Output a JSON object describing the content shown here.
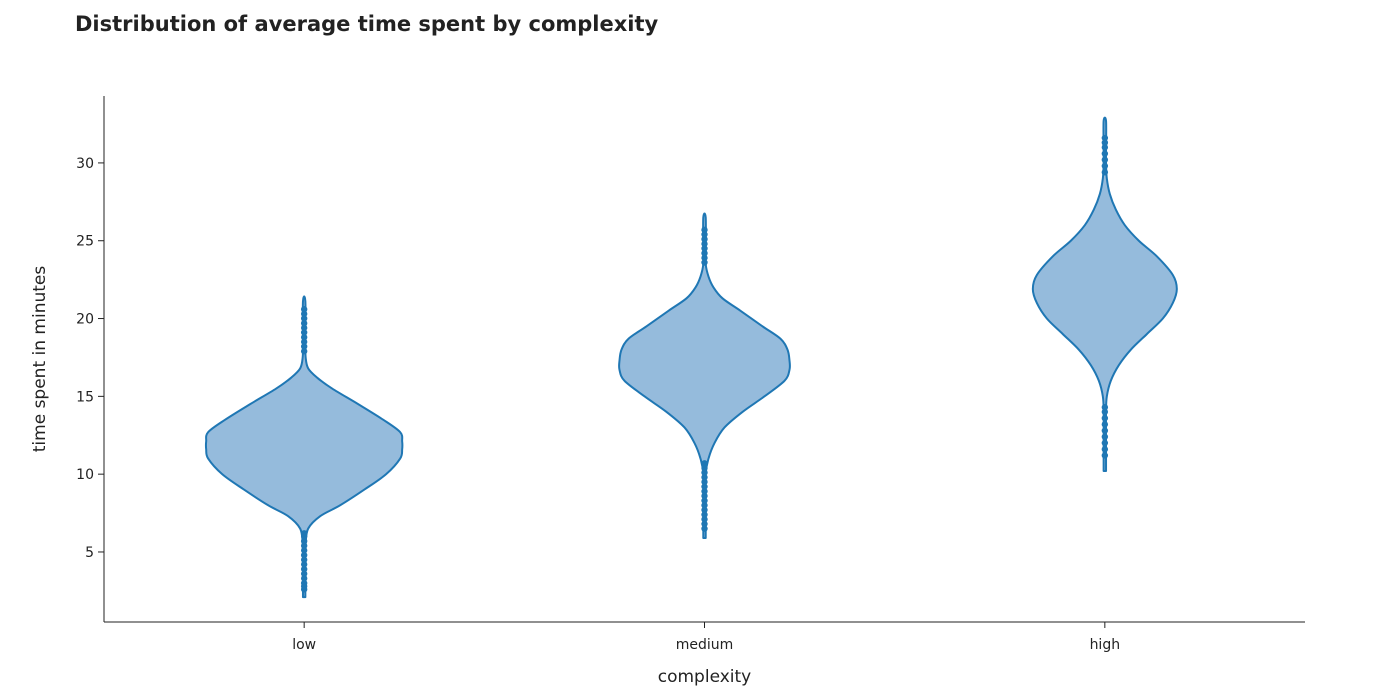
{
  "chart_data": {
    "type": "violin",
    "title": "Distribution of average time spent by complexity",
    "xlabel": "complexity",
    "ylabel": "time spent in minutes",
    "categories": [
      "low",
      "medium",
      "high"
    ],
    "yticks": [
      5,
      10,
      15,
      20,
      25,
      30
    ],
    "ylim": [
      0.5,
      34.3
    ],
    "grid": false,
    "color": "#1f77b4",
    "fill_color": "#95bbdc",
    "violins": [
      {
        "category": "low",
        "range": [
          2.1,
          21.1
        ],
        "outliers": [
          2.6,
          2.8,
          3.0,
          3.3,
          3.6,
          3.9,
          4.2,
          4.5,
          4.8,
          5.1,
          5.4,
          5.7,
          6.0,
          6.2,
          17.9,
          18.2,
          18.5,
          18.8,
          19.1,
          19.4,
          19.7,
          20.0,
          20.3,
          20.6
        ],
        "profile": [
          [
            2.1,
            0.0
          ],
          [
            4.0,
            0.0
          ],
          [
            5.5,
            1.5
          ],
          [
            6.5,
            4
          ],
          [
            7.3,
            16
          ],
          [
            8.0,
            36
          ],
          [
            9.0,
            60
          ],
          [
            10.0,
            82
          ],
          [
            11.0,
            96
          ],
          [
            11.6,
            98
          ],
          [
            12.1,
            98
          ],
          [
            12.7,
            96
          ],
          [
            13.5,
            79
          ],
          [
            14.5,
            54
          ],
          [
            15.5,
            28
          ],
          [
            16.2,
            13
          ],
          [
            16.8,
            4
          ],
          [
            17.5,
            1.5
          ],
          [
            18.5,
            0.0
          ],
          [
            21.1,
            0.0
          ]
        ]
      },
      {
        "category": "medium",
        "range": [
          5.9,
          26.5
        ],
        "outliers": [
          6.5,
          6.8,
          7.1,
          7.4,
          7.7,
          8.0,
          8.3,
          8.6,
          8.9,
          9.2,
          9.5,
          9.8,
          10.1,
          10.4,
          10.7,
          23.6,
          23.9,
          24.2,
          24.5,
          24.8,
          25.1,
          25.4,
          25.7
        ],
        "profile": [
          [
            5.9,
            0.0
          ],
          [
            8.0,
            0.0
          ],
          [
            10.0,
            1
          ],
          [
            11.0,
            4
          ],
          [
            12.0,
            10
          ],
          [
            13.0,
            20
          ],
          [
            14.0,
            38
          ],
          [
            15.0,
            60
          ],
          [
            16.0,
            80
          ],
          [
            16.7,
            85
          ],
          [
            17.3,
            85
          ],
          [
            18.0,
            83
          ],
          [
            18.7,
            76
          ],
          [
            19.5,
            58
          ],
          [
            20.5,
            36
          ],
          [
            21.3,
            18
          ],
          [
            22.0,
            9
          ],
          [
            22.7,
            4
          ],
          [
            23.5,
            1
          ],
          [
            24.5,
            0.0
          ],
          [
            26.5,
            0.0
          ]
        ]
      },
      {
        "category": "high",
        "range": [
          10.2,
          32.7
        ],
        "outliers": [
          11.2,
          11.6,
          12.0,
          12.4,
          12.8,
          13.2,
          13.6,
          14.0,
          14.3,
          29.4,
          29.8,
          30.2,
          30.6,
          31.0,
          31.3,
          31.6
        ],
        "profile": [
          [
            10.2,
            0.0
          ],
          [
            11.5,
            0.0
          ],
          [
            14.0,
            0.5
          ],
          [
            15.0,
            2
          ],
          [
            16.0,
            6
          ],
          [
            17.0,
            14
          ],
          [
            18.0,
            26
          ],
          [
            19.0,
            42
          ],
          [
            20.0,
            58
          ],
          [
            21.0,
            68
          ],
          [
            21.9,
            72
          ],
          [
            22.8,
            68
          ],
          [
            24.0,
            52
          ],
          [
            25.0,
            34
          ],
          [
            26.0,
            20
          ],
          [
            27.0,
            11
          ],
          [
            28.0,
            5
          ],
          [
            29.0,
            2
          ],
          [
            30.0,
            0.5
          ],
          [
            31.0,
            0.0
          ],
          [
            32.7,
            0.0
          ]
        ]
      }
    ]
  }
}
